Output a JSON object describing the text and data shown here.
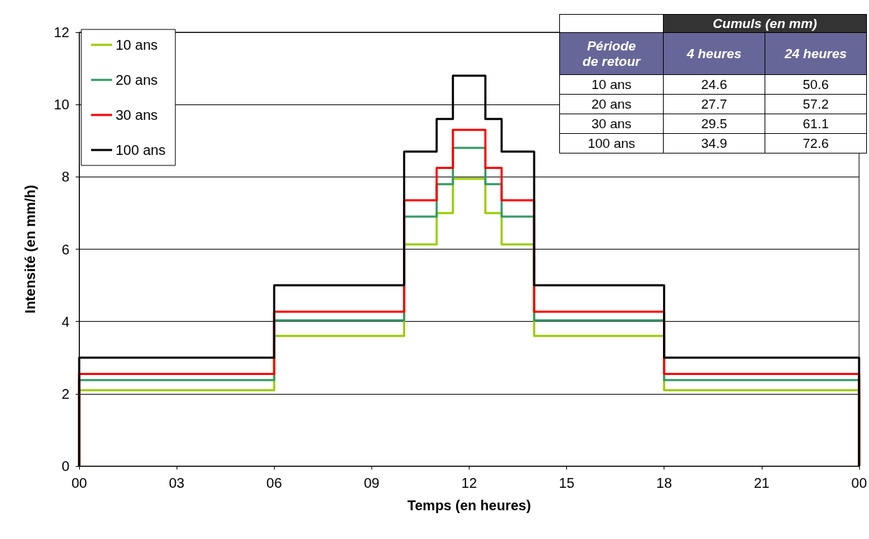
{
  "chart_data": {
    "type": "step",
    "xlabel": "Temps (en heures)",
    "ylabel": "Intensité (en mm/h)",
    "x": [
      0,
      0,
      6,
      10,
      11,
      11.5,
      12.5,
      13,
      14,
      18,
      24,
      24
    ],
    "series": [
      {
        "name": "10 ans",
        "color": "#99cc00",
        "values": [
          0,
          2.1,
          3.6,
          6.13,
          7.0,
          7.95,
          7.0,
          6.13,
          3.6,
          2.1,
          2.1,
          0
        ]
      },
      {
        "name": "20 ans",
        "color": "#339966",
        "values": [
          0,
          2.38,
          4.03,
          6.9,
          7.8,
          8.8,
          7.8,
          6.9,
          4.03,
          2.38,
          2.38,
          0
        ]
      },
      {
        "name": "30 ans",
        "color": "#ff0000",
        "values": [
          0,
          2.55,
          4.27,
          7.35,
          8.25,
          9.3,
          8.25,
          7.35,
          4.27,
          2.55,
          2.55,
          0
        ]
      },
      {
        "name": "100 ans",
        "color": "#000000",
        "values": [
          0,
          3.0,
          5.0,
          8.7,
          9.6,
          10.8,
          9.6,
          8.7,
          5.0,
          3.0,
          3.0,
          0
        ]
      }
    ],
    "xlim": [
      0,
      24
    ],
    "xticks": [
      {
        "value": 0,
        "label": "00"
      },
      {
        "value": 3,
        "label": "03"
      },
      {
        "value": 6,
        "label": "06"
      },
      {
        "value": 9,
        "label": "09"
      },
      {
        "value": 12,
        "label": "12"
      },
      {
        "value": 15,
        "label": "15"
      },
      {
        "value": 18,
        "label": "18"
      },
      {
        "value": 21,
        "label": "21"
      },
      {
        "value": 24,
        "label": "00"
      }
    ],
    "ylim": [
      0,
      12
    ],
    "yticks": [
      0,
      2,
      4,
      6,
      8,
      10,
      12
    ],
    "grid": "y",
    "legend": "top left",
    "annotations": [
      "Cumuls (en mm)",
      "Période\nde retour",
      "4 heures",
      "24 heures",
      "10 ans",
      "24.6",
      "50.6",
      "20 ans",
      "27.7",
      "57.2",
      "30 ans",
      "29.5",
      "61.1",
      "100 ans",
      "34.9",
      "72.6"
    ]
  }
}
